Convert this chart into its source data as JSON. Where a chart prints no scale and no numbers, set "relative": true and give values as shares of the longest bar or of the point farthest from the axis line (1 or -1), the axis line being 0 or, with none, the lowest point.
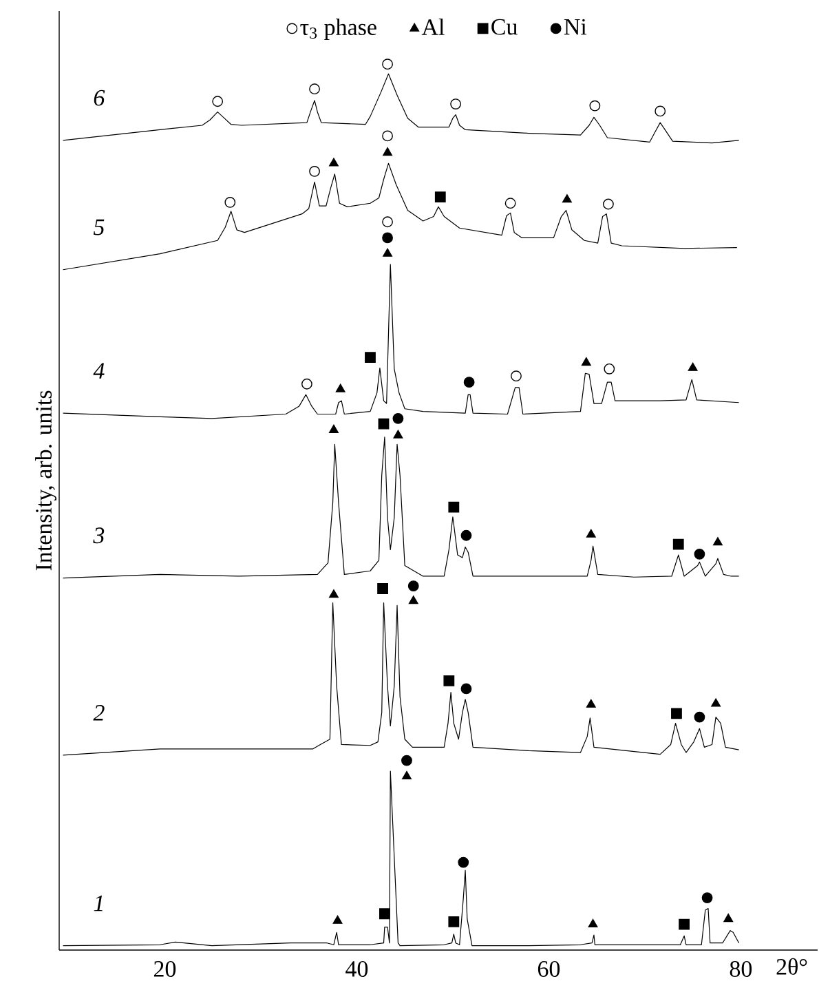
{
  "chart_data": {
    "type": "line",
    "relative": true,
    "xlabel": "2θ°",
    "ylabel": "Intensity, arb. units",
    "xlim": [
      9,
      88
    ],
    "xticks": [
      20,
      40,
      60,
      80
    ],
    "legend": "top",
    "series": [
      {
        "name": "1",
        "color": "#000000",
        "line_style": "solid",
        "x": [
          9.4,
          19.5,
          21.1,
          24.9,
          33.1,
          36.9,
          37.6,
          37.9,
          38.1,
          41.4,
          42.8,
          42.9,
          43.2,
          43.4,
          43.5,
          44.3,
          44.5,
          49.1,
          49.9,
          50.1,
          50.3,
          50.7,
          51.1,
          51.3,
          51.5,
          52.0,
          57.9,
          63.3,
          64.5,
          64.7,
          64.8,
          73.7,
          74.1,
          74.3,
          75.9,
          76.3,
          76.6,
          76.8,
          78.1,
          78.9,
          79.2,
          79.8
        ],
        "values": [
          0.005,
          0.006,
          0.009,
          0.005,
          0.008,
          0.008,
          0.006,
          0.02,
          0.006,
          0.006,
          0.008,
          0.026,
          0.026,
          0.008,
          0.202,
          0.008,
          0.005,
          0.006,
          0.008,
          0.018,
          0.008,
          0.006,
          0.059,
          0.09,
          0.035,
          0.005,
          0.005,
          0.006,
          0.008,
          0.017,
          0.006,
          0.006,
          0.016,
          0.006,
          0.006,
          0.045,
          0.047,
          0.008,
          0.008,
          0.022,
          0.02,
          0.008
        ]
      },
      {
        "name": "2",
        "color": "#000000",
        "line_style": "solid",
        "x": [
          9.4,
          19.5,
          27.7,
          35.4,
          36.2,
          37.2,
          37.5,
          37.9,
          38.4,
          41.4,
          42.2,
          42.6,
          42.8,
          43.2,
          43.5,
          43.9,
          44.2,
          44.5,
          45.0,
          45.8,
          49.1,
          49.5,
          49.8,
          50.1,
          50.6,
          51.0,
          51.3,
          51.6,
          52.1,
          57.9,
          63.3,
          64.0,
          64.3,
          64.7,
          71.6,
          72.7,
          73.2,
          73.8,
          74.3,
          75.1,
          75.7,
          76.2,
          77.0,
          77.4,
          77.9,
          78.4,
          79.8
        ],
        "values": [
          0.22,
          0.227,
          0.227,
          0.227,
          0.232,
          0.238,
          0.392,
          0.298,
          0.232,
          0.231,
          0.235,
          0.268,
          0.392,
          0.298,
          0.253,
          0.298,
          0.389,
          0.286,
          0.238,
          0.229,
          0.229,
          0.256,
          0.291,
          0.256,
          0.238,
          0.268,
          0.283,
          0.268,
          0.229,
          0.225,
          0.223,
          0.241,
          0.262,
          0.229,
          0.221,
          0.232,
          0.256,
          0.232,
          0.223,
          0.235,
          0.25,
          0.229,
          0.232,
          0.263,
          0.256,
          0.229,
          0.226
        ]
      },
      {
        "name": "3",
        "color": "#000000",
        "line_style": "solid",
        "x": [
          9.4,
          19.5,
          27.7,
          35.9,
          37.0,
          37.5,
          37.7,
          38.1,
          38.7,
          41.4,
          42.3,
          42.6,
          42.9,
          43.2,
          43.5,
          43.9,
          44.2,
          44.5,
          45.0,
          46.9,
          49.1,
          49.6,
          50.0,
          50.5,
          51.0,
          51.3,
          51.6,
          52.1,
          57.9,
          64.0,
          64.4,
          64.6,
          65.1,
          68.9,
          72.8,
          73.5,
          74.1,
          75.5,
          75.7,
          76.3,
          77.4,
          77.6,
          78.2,
          79.0,
          79.8
        ],
        "values": [
          0.42,
          0.424,
          0.422,
          0.424,
          0.437,
          0.505,
          0.571,
          0.505,
          0.424,
          0.428,
          0.44,
          0.536,
          0.579,
          0.488,
          0.452,
          0.488,
          0.571,
          0.536,
          0.434,
          0.422,
          0.422,
          0.452,
          0.489,
          0.446,
          0.443,
          0.455,
          0.449,
          0.422,
          0.422,
          0.422,
          0.44,
          0.456,
          0.424,
          0.421,
          0.422,
          0.446,
          0.422,
          0.434,
          0.438,
          0.422,
          0.436,
          0.442,
          0.424,
          0.422,
          0.422
        ]
      },
      {
        "name": "4",
        "color": "#000000",
        "line_style": "solid",
        "x": [
          9.4,
          19.5,
          24.9,
          32.6,
          34.0,
          34.7,
          35.3,
          35.9,
          37.8,
          38.1,
          38.4,
          38.7,
          41.4,
          42.1,
          42.4,
          42.8,
          43.1,
          43.5,
          43.9,
          44.4,
          45.0,
          46.9,
          51.3,
          51.6,
          51.8,
          52.1,
          55.7,
          56.5,
          56.9,
          57.3,
          63.3,
          63.8,
          64.2,
          64.7,
          65.5,
          66.1,
          66.5,
          66.9,
          71.6,
          74.3,
          74.9,
          75.4,
          79.8
        ],
        "values": [
          0.606,
          0.602,
          0.6,
          0.605,
          0.614,
          0.627,
          0.614,
          0.605,
          0.605,
          0.618,
          0.62,
          0.605,
          0.608,
          0.629,
          0.657,
          0.62,
          0.617,
          0.774,
          0.656,
          0.629,
          0.611,
          0.608,
          0.606,
          0.627,
          0.627,
          0.606,
          0.605,
          0.635,
          0.635,
          0.605,
          0.608,
          0.651,
          0.65,
          0.617,
          0.617,
          0.641,
          0.641,
          0.62,
          0.62,
          0.621,
          0.644,
          0.621,
          0.618
        ]
      },
      {
        "name": "5",
        "color": "#000000",
        "line_style": "solid",
        "x": [
          9.4,
          19.5,
          25.5,
          26.3,
          26.9,
          27.5,
          28.3,
          34.3,
          35.0,
          35.6,
          36.1,
          36.8,
          37.3,
          37.7,
          38.2,
          39.0,
          41.4,
          42.3,
          42.8,
          43.3,
          44.1,
          45.3,
          46.9,
          48.0,
          48.5,
          49.1,
          50.7,
          55.1,
          55.6,
          56.0,
          56.4,
          57.2,
          60.5,
          61.3,
          61.8,
          62.4,
          63.7,
          65.1,
          65.6,
          66.0,
          66.5,
          67.6,
          74.1,
          79.6
        ],
        "values": [
          0.768,
          0.786,
          0.801,
          0.816,
          0.834,
          0.813,
          0.81,
          0.831,
          0.837,
          0.867,
          0.84,
          0.84,
          0.861,
          0.876,
          0.843,
          0.839,
          0.843,
          0.849,
          0.87,
          0.888,
          0.864,
          0.835,
          0.823,
          0.828,
          0.839,
          0.828,
          0.815,
          0.807,
          0.829,
          0.832,
          0.81,
          0.804,
          0.804,
          0.828,
          0.835,
          0.813,
          0.801,
          0.798,
          0.828,
          0.831,
          0.798,
          0.795,
          0.792,
          0.793
        ]
      },
      {
        "name": "6",
        "color": "#000000",
        "line_style": "solid",
        "x": [
          9.4,
          19.5,
          23.9,
          24.7,
          25.5,
          26.1,
          26.9,
          28.0,
          34.8,
          35.2,
          35.6,
          35.9,
          36.3,
          40.9,
          41.4,
          42.5,
          43.3,
          44.2,
          45.3,
          46.4,
          49.6,
          50.0,
          50.3,
          50.7,
          51.3,
          57.9,
          63.3,
          64.2,
          64.7,
          65.3,
          66.1,
          70.5,
          71.0,
          71.6,
          72.1,
          72.9,
          77.0,
          79.8
        ],
        "values": [
          0.914,
          0.926,
          0.931,
          0.937,
          0.946,
          0.94,
          0.932,
          0.931,
          0.934,
          0.947,
          0.959,
          0.946,
          0.934,
          0.932,
          0.941,
          0.968,
          0.989,
          0.965,
          0.939,
          0.929,
          0.929,
          0.939,
          0.943,
          0.931,
          0.926,
          0.922,
          0.92,
          0.931,
          0.94,
          0.931,
          0.917,
          0.912,
          0.922,
          0.934,
          0.926,
          0.913,
          0.911,
          0.914
        ]
      },
      {
        "name": "τ$_{3}$ phase",
        "type": "scatter",
        "marker": "circle",
        "color": "#ffffff",
        "x": [
          25.5,
          35.6,
          43.2,
          50.3,
          64.8,
          71.6,
          26.8,
          35.6,
          43.2,
          56.0,
          66.2,
          43.2,
          34.8,
          56.6,
          66.3
        ],
        "values": [
          0.958,
          0.972,
          1.0,
          0.955,
          0.953,
          0.947,
          0.844,
          0.879,
          0.919,
          0.843,
          0.842,
          0.822,
          0.639,
          0.648,
          0.656
        ]
      },
      {
        "name": "Al",
        "type": "scatter",
        "marker": "triangle",
        "color": "#000000",
        "x": [
          37.6,
          43.2,
          61.9,
          43.2,
          38.3,
          63.9,
          75.0,
          37.6,
          44.3,
          64.4,
          77.6,
          37.6,
          45.9,
          64.4,
          77.4,
          38.0,
          45.2,
          64.6,
          78.7
        ],
        "values": [
          0.888,
          0.9,
          0.847,
          0.786,
          0.633,
          0.663,
          0.657,
          0.587,
          0.581,
          0.469,
          0.46,
          0.401,
          0.394,
          0.277,
          0.278,
          0.033,
          0.196,
          0.029,
          0.035
        ]
      },
      {
        "name": "Cu",
        "type": "scatter",
        "marker": "square",
        "color": "#000000",
        "x": [
          48.7,
          41.4,
          42.8,
          50.1,
          73.5,
          42.7,
          49.6,
          73.3,
          42.9,
          50.1,
          74.1
        ],
        "values": [
          0.85,
          0.669,
          0.594,
          0.5,
          0.458,
          0.408,
          0.304,
          0.267,
          0.041,
          0.032,
          0.029
        ]
      },
      {
        "name": "Ni",
        "type": "scatter",
        "marker": "circle",
        "color": "#000000",
        "x": [
          43.2,
          51.7,
          44.3,
          51.4,
          75.7,
          45.9,
          51.4,
          75.7,
          45.2,
          51.1,
          76.5
        ],
        "values": [
          0.804,
          0.641,
          0.6,
          0.468,
          0.447,
          0.411,
          0.295,
          0.263,
          0.214,
          0.099,
          0.059
        ]
      }
    ]
  }
}
